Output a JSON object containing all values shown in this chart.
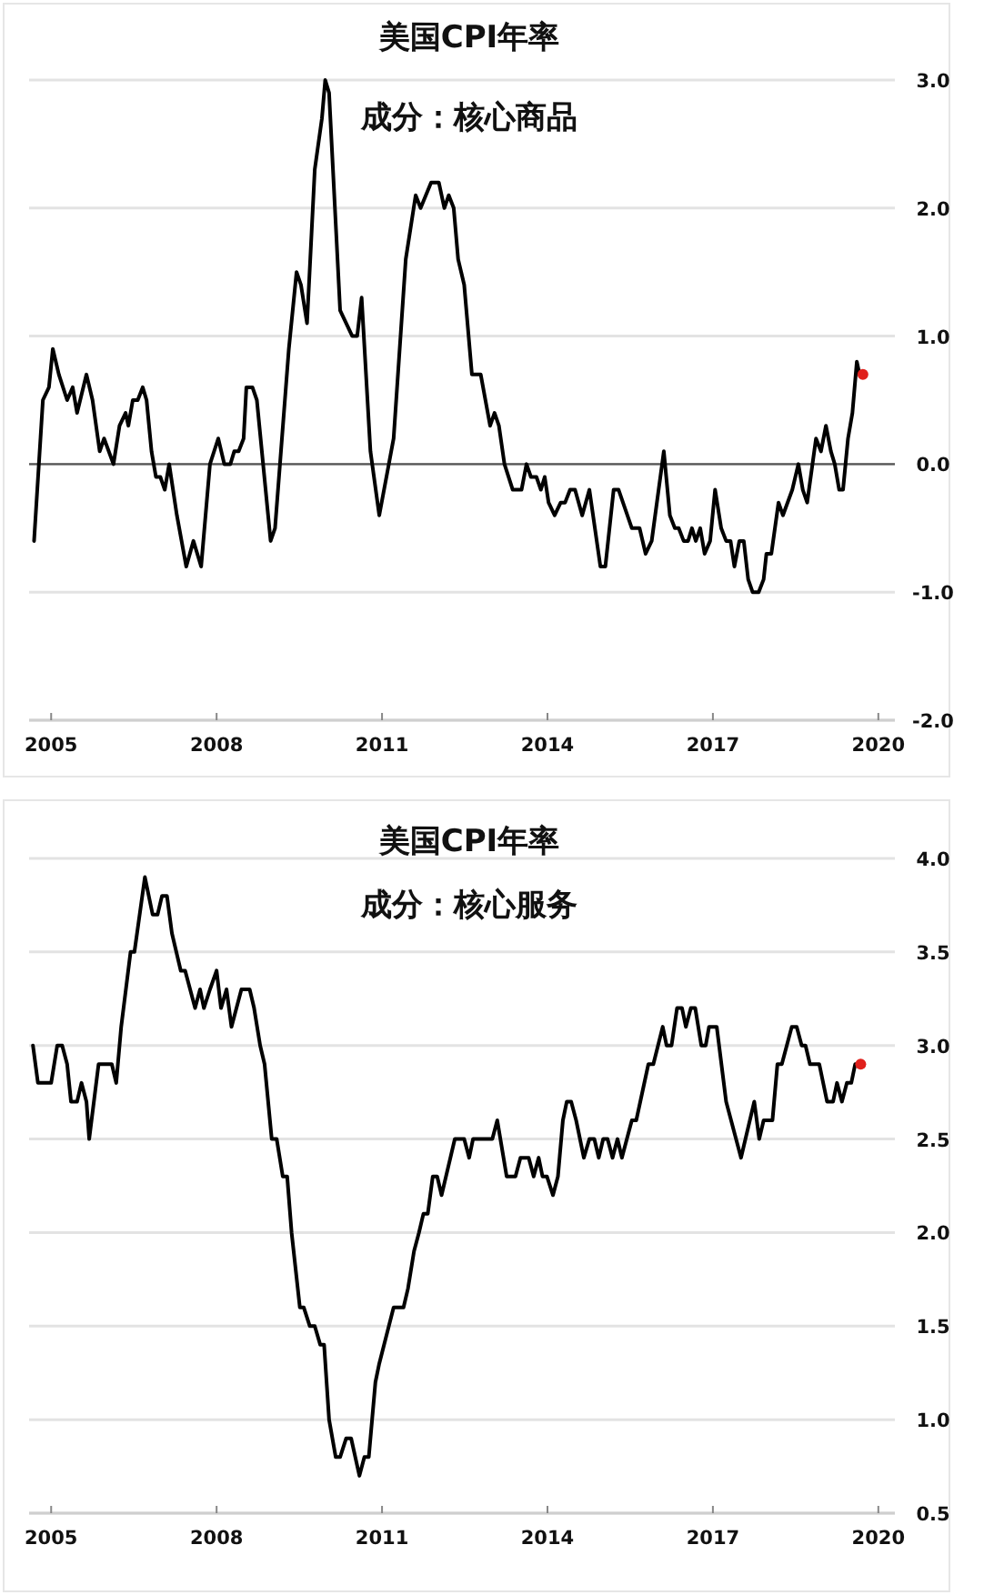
{
  "chart_data": [
    {
      "type": "line",
      "title": "美国CPI年率",
      "subtitle": "成分：核心商品",
      "series": [
        {
          "color": "#000000",
          "x": [
            2004.69,
            2004.85,
            2004.96,
            2005.03,
            2005.14,
            2005.29,
            2005.39,
            2005.47,
            2005.64,
            2005.75,
            2005.88,
            2005.96,
            2006.13,
            2006.24,
            2006.35,
            2006.4,
            2006.48,
            2006.57,
            2006.66,
            2006.73,
            2006.82,
            2006.9,
            2006.98,
            2007.06,
            2007.14,
            2007.28,
            2007.45,
            2007.58,
            2007.72,
            2007.88,
            2008.03,
            2008.14,
            2008.25,
            2008.32,
            2008.4,
            2008.49,
            2008.54,
            2008.65,
            2008.73,
            2008.98,
            2009.06,
            2009.31,
            2009.45,
            2009.53,
            2009.64,
            2009.78,
            2009.91,
            2009.97,
            2010.04,
            2010.24,
            2010.46,
            2010.55,
            2010.63,
            2010.79,
            2010.95,
            2011.21,
            2011.43,
            2011.61,
            2011.7,
            2011.89,
            2012.03,
            2012.13,
            2012.21,
            2012.3,
            2012.38,
            2012.49,
            2012.63,
            2012.79,
            2012.96,
            2013.04,
            2013.12,
            2013.22,
            2013.37,
            2013.53,
            2013.62,
            2013.7,
            2013.8,
            2013.88,
            2013.95,
            2014.02,
            2014.13,
            2014.24,
            2014.32,
            2014.41,
            2014.5,
            2014.63,
            2014.76,
            2014.96,
            2015.05,
            2015.2,
            2015.29,
            2015.53,
            2015.67,
            2015.78,
            2015.89,
            2016.11,
            2016.22,
            2016.31,
            2016.38,
            2016.47,
            2016.55,
            2016.62,
            2016.69,
            2016.77,
            2016.85,
            2016.95,
            2017.04,
            2017.15,
            2017.24,
            2017.32,
            2017.39,
            2017.48,
            2017.56,
            2017.64,
            2017.72,
            2017.83,
            2017.92,
            2017.97,
            2018.06,
            2018.19,
            2018.27,
            2018.44,
            2018.55,
            2018.63,
            2018.71,
            2018.87,
            2018.96,
            2019.05,
            2019.14,
            2019.21,
            2019.29,
            2019.36,
            2019.45,
            2019.53,
            2019.61,
            2019.66
          ],
          "values": [
            -0.6,
            0.5,
            0.6,
            0.9,
            0.7,
            0.5,
            0.6,
            0.4,
            0.7,
            0.5,
            0.1,
            0.2,
            0,
            0.3,
            0.4,
            0.3,
            0.5,
            0.5,
            0.6,
            0.5,
            0.1,
            -0.1,
            -0.1,
            -0.2,
            0,
            -0.4,
            -0.8,
            -0.6,
            -0.8,
            0,
            0.2,
            0,
            0,
            0.1,
            0.1,
            0.2,
            0.6,
            0.6,
            0.5,
            -0.6,
            -0.5,
            0.9,
            1.5,
            1.4,
            1.1,
            2.3,
            2.7,
            3.0,
            2.9,
            1.2,
            1.0,
            1.0,
            1.3,
            0.1,
            -0.4,
            0.2,
            1.6,
            2.1,
            2.0,
            2.2,
            2.2,
            2.0,
            2.1,
            2.0,
            1.6,
            1.4,
            0.7,
            0.7,
            0.3,
            0.4,
            0.3,
            0,
            -0.2,
            -0.2,
            0,
            -0.1,
            -0.1,
            -0.2,
            -0.1,
            -0.3,
            -0.4,
            -0.3,
            -0.3,
            -0.2,
            -0.2,
            -0.4,
            -0.2,
            -0.8,
            -0.8,
            -0.2,
            -0.2,
            -0.5,
            -0.5,
            -0.7,
            -0.6,
            0.1,
            -0.4,
            -0.5,
            -0.5,
            -0.6,
            -0.6,
            -0.5,
            -0.6,
            -0.5,
            -0.7,
            -0.6,
            -0.2,
            -0.5,
            -0.6,
            -0.6,
            -0.8,
            -0.6,
            -0.6,
            -0.9,
            -1.0,
            -1.0,
            -0.9,
            -0.7,
            -0.7,
            -0.3,
            -0.4,
            -0.2,
            0,
            -0.2,
            -0.3,
            0.2,
            0.1,
            0.3,
            0.1,
            0,
            -0.2,
            -0.2,
            0.2,
            0.4,
            0.8,
            0.7
          ]
        },
        {
          "type": "scatter",
          "color": "#e0201c",
          "x": [
            2019.72
          ],
          "values": [
            0.7
          ]
        }
      ],
      "xlim": [
        2004.6,
        2020.3
      ],
      "ylim": [
        -2,
        3
      ],
      "xticks": [
        2005,
        2008,
        2011,
        2014,
        2017,
        2020
      ],
      "yticks": [
        {
          "value": -2,
          "label": "-2.0"
        },
        {
          "value": -1,
          "label": "-1.0"
        },
        {
          "value": 0,
          "label": "0.0"
        },
        {
          "value": 1,
          "label": "1.0"
        },
        {
          "value": 2,
          "label": "2.0"
        },
        {
          "value": 3,
          "label": "3.0"
        }
      ],
      "grid": "y",
      "ref_lines": [
        {
          "axis": "y",
          "value": 0,
          "color": "#555555"
        }
      ]
    },
    {
      "type": "line",
      "title": "美国CPI年率",
      "subtitle": "成分：核心服务",
      "series": [
        {
          "color": "#000000",
          "x": [
            2004.67,
            2004.76,
            2005.0,
            2005.11,
            2005.2,
            2005.29,
            2005.36,
            2005.47,
            2005.55,
            2005.64,
            2005.69,
            2005.86,
            2006.1,
            2006.18,
            2006.27,
            2006.44,
            2006.51,
            2006.7,
            2006.84,
            2006.93,
            2007.01,
            2007.1,
            2007.19,
            2007.35,
            2007.43,
            2007.61,
            2007.7,
            2007.77,
            2007.88,
            2008.0,
            2008.08,
            2008.18,
            2008.27,
            2008.45,
            2008.6,
            2008.68,
            2008.79,
            2008.87,
            2009.0,
            2009.09,
            2009.2,
            2009.28,
            2009.36,
            2009.51,
            2009.58,
            2009.69,
            2009.78,
            2009.88,
            2009.95,
            2010.04,
            2010.16,
            2010.24,
            2010.35,
            2010.44,
            2010.59,
            2010.68,
            2010.76,
            2010.88,
            2010.95,
            2011.21,
            2011.39,
            2011.47,
            2011.58,
            2011.67,
            2011.75,
            2011.83,
            2011.92,
            2012.0,
            2012.08,
            2012.32,
            2012.49,
            2012.58,
            2012.65,
            2013.0,
            2013.09,
            2013.26,
            2013.42,
            2013.51,
            2013.66,
            2013.75,
            2013.84,
            2013.91,
            2013.99,
            2014.1,
            2014.19,
            2014.28,
            2014.35,
            2014.43,
            2014.52,
            2014.66,
            2014.76,
            2014.85,
            2014.93,
            2015.01,
            2015.09,
            2015.18,
            2015.27,
            2015.35,
            2015.53,
            2015.61,
            2015.83,
            2015.92,
            2016.09,
            2016.16,
            2016.25,
            2016.35,
            2016.44,
            2016.51,
            2016.6,
            2016.68,
            2016.79,
            2016.87,
            2016.93,
            2017.07,
            2017.24,
            2017.51,
            2017.75,
            2017.84,
            2017.92,
            2018.08,
            2018.17,
            2018.25,
            2018.43,
            2018.52,
            2018.61,
            2018.68,
            2018.76,
            2018.93,
            2019.07,
            2019.18,
            2019.25,
            2019.34,
            2019.43,
            2019.51,
            2019.58
          ],
          "values": [
            3.0,
            2.8,
            2.8,
            3.0,
            3.0,
            2.9,
            2.7,
            2.7,
            2.8,
            2.7,
            2.5,
            2.9,
            2.9,
            2.8,
            3.1,
            3.5,
            3.5,
            3.9,
            3.7,
            3.7,
            3.8,
            3.8,
            3.6,
            3.4,
            3.4,
            3.2,
            3.3,
            3.2,
            3.3,
            3.4,
            3.2,
            3.3,
            3.1,
            3.3,
            3.3,
            3.2,
            3.0,
            2.9,
            2.5,
            2.5,
            2.3,
            2.3,
            2.0,
            1.6,
            1.6,
            1.5,
            1.5,
            1.4,
            1.4,
            1.0,
            0.8,
            0.8,
            0.9,
            0.9,
            0.7,
            0.8,
            0.8,
            1.2,
            1.3,
            1.6,
            1.6,
            1.7,
            1.9,
            2.0,
            2.1,
            2.1,
            2.3,
            2.3,
            2.2,
            2.5,
            2.5,
            2.4,
            2.5,
            2.5,
            2.6,
            2.3,
            2.3,
            2.4,
            2.4,
            2.3,
            2.4,
            2.3,
            2.3,
            2.2,
            2.3,
            2.6,
            2.7,
            2.7,
            2.6,
            2.4,
            2.5,
            2.5,
            2.4,
            2.5,
            2.5,
            2.4,
            2.5,
            2.4,
            2.6,
            2.6,
            2.9,
            2.9,
            3.1,
            3.0,
            3.0,
            3.2,
            3.2,
            3.1,
            3.2,
            3.2,
            3.0,
            3.0,
            3.1,
            3.1,
            2.7,
            2.4,
            2.7,
            2.5,
            2.6,
            2.6,
            2.9,
            2.9,
            3.1,
            3.1,
            3.0,
            3.0,
            2.9,
            2.9,
            2.7,
            2.7,
            2.8,
            2.7,
            2.8,
            2.8,
            2.9
          ]
        },
        {
          "type": "scatter",
          "color": "#e0201c",
          "x": [
            2019.68
          ],
          "values": [
            2.9
          ]
        }
      ],
      "xlim": [
        2004.6,
        2020.3
      ],
      "ylim": [
        0.5,
        4
      ],
      "xticks": [
        2005,
        2008,
        2011,
        2014,
        2017,
        2020
      ],
      "yticks": [
        {
          "value": 0.5,
          "label": "0.5"
        },
        {
          "value": 1,
          "label": "1.0"
        },
        {
          "value": 1.5,
          "label": "1.5"
        },
        {
          "value": 2,
          "label": "2.0"
        },
        {
          "value": 2.5,
          "label": "2.5"
        },
        {
          "value": 3,
          "label": "3.0"
        },
        {
          "value": 3.5,
          "label": "3.5"
        },
        {
          "value": 4,
          "label": "4.0"
        }
      ],
      "grid": "y"
    }
  ]
}
